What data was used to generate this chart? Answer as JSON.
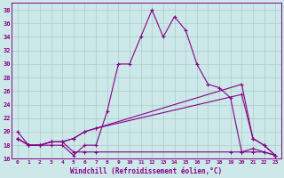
{
  "xlabel": "Windchill (Refroidissement éolien,°C)",
  "background_color": "#cce8e8",
  "line_color": "#880088",
  "grid_color": "#aacccc",
  "xlim": [
    -0.5,
    23.5
  ],
  "ylim": [
    16,
    39
  ],
  "yticks": [
    16,
    18,
    20,
    22,
    24,
    26,
    28,
    30,
    32,
    34,
    36,
    38
  ],
  "xticks": [
    0,
    1,
    2,
    3,
    4,
    5,
    6,
    7,
    8,
    9,
    10,
    11,
    12,
    13,
    14,
    15,
    16,
    17,
    18,
    19,
    20,
    21,
    22,
    23
  ],
  "s1_x": [
    0,
    1,
    2,
    3,
    4,
    5,
    6,
    7,
    8,
    9,
    10,
    11,
    12,
    13,
    14,
    15,
    16,
    17,
    18,
    19,
    20,
    21,
    22,
    23
  ],
  "s1_y": [
    20,
    18,
    18,
    18,
    18,
    16.5,
    18,
    18,
    23,
    30,
    30,
    34,
    38,
    34,
    37,
    35,
    30,
    27,
    26.5,
    25,
    17,
    17.5,
    17,
    16.5
  ],
  "s2_x": [
    0,
    1,
    2,
    3,
    4,
    5,
    6,
    7,
    20,
    21,
    22,
    23
  ],
  "s2_y": [
    19,
    18,
    18,
    18.5,
    18.5,
    19,
    20,
    20.5,
    27,
    19,
    18,
    16.5
  ],
  "s3_x": [
    0,
    1,
    2,
    3,
    4,
    5,
    6,
    7,
    20,
    21,
    22,
    23
  ],
  "s3_y": [
    19,
    18,
    18,
    18.5,
    18.5,
    19,
    20,
    20.5,
    25.5,
    19,
    18,
    16.5
  ],
  "s4_x": [
    0,
    1,
    2,
    3,
    4,
    5,
    6,
    7,
    19,
    20,
    21,
    22,
    23
  ],
  "s4_y": [
    19,
    18,
    18,
    18.5,
    18.5,
    17,
    17,
    17,
    17,
    17,
    17,
    17,
    16.5
  ]
}
